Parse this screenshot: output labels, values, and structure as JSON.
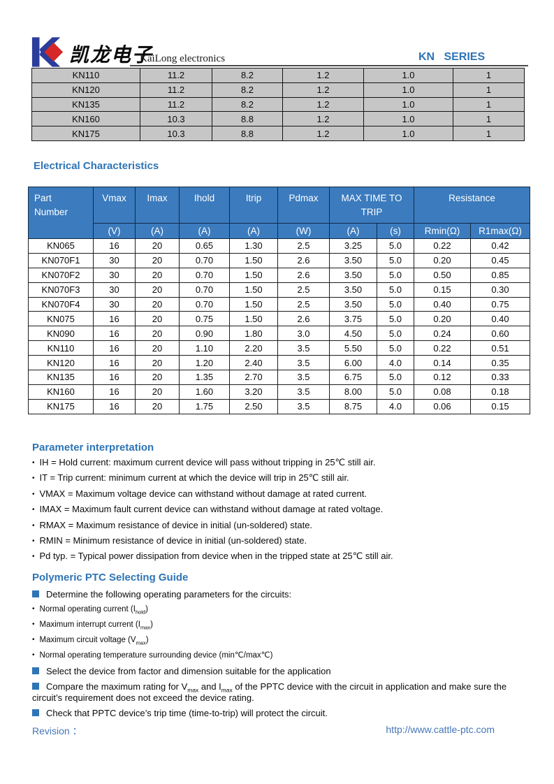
{
  "header": {
    "company_cn": "凯龙电子",
    "company_en": "KaiLong electronics",
    "series": "KN   SERIES"
  },
  "top_table": {
    "rows": [
      [
        "KN110",
        "11.2",
        "8.2",
        "1.2",
        "1.0",
        "1"
      ],
      [
        "KN120",
        "11.2",
        "8.2",
        "1.2",
        "1.0",
        "1"
      ],
      [
        "KN135",
        "11.2",
        "8.2",
        "1.2",
        "1.0",
        "1"
      ],
      [
        "KN160",
        "10.3",
        "8.8",
        "1.2",
        "1.0",
        "1"
      ],
      [
        "KN175",
        "10.3",
        "8.8",
        "1.2",
        "1.0",
        "1"
      ]
    ]
  },
  "electrical": {
    "title": "Electrical Characteristics",
    "head": {
      "part": "Part\nNumber",
      "vmax": "Vmax",
      "imax": "Imax",
      "ihold": "Ihold",
      "itrip": "Itrip",
      "pdmax": "Pdmax",
      "max_time": "MAX TIME TO TRIP",
      "resistance": "Resistance"
    },
    "units": [
      "(V)",
      "(A)",
      "(A)",
      "(A)",
      "(W)",
      "(A)",
      "(s)",
      "Rmin(Ω)",
      "R1max(Ω)"
    ],
    "rows": [
      [
        "KN065",
        "16",
        "20",
        "0.65",
        "1.30",
        "2.5",
        "3.25",
        "5.0",
        "0.22",
        "0.42"
      ],
      [
        "KN070F1",
        "30",
        "20",
        "0.70",
        "1.50",
        "2.6",
        "3.50",
        "5.0",
        "0.20",
        "0.45"
      ],
      [
        "KN070F2",
        "30",
        "20",
        "0.70",
        "1.50",
        "2.6",
        "3.50",
        "5.0",
        "0.50",
        "0.85"
      ],
      [
        "KN070F3",
        "30",
        "20",
        "0.70",
        "1.50",
        "2.5",
        "3.50",
        "5.0",
        "0.15",
        "0.30"
      ],
      [
        "KN070F4",
        "30",
        "20",
        "0.70",
        "1.50",
        "2.5",
        "3.50",
        "5.0",
        "0.40",
        "0.75"
      ],
      [
        "KN075",
        "16",
        "20",
        "0.75",
        "1.50",
        "2.6",
        "3.75",
        "5.0",
        "0.20",
        "0.40"
      ],
      [
        "KN090",
        "16",
        "20",
        "0.90",
        "1.80",
        "3.0",
        "4.50",
        "5.0",
        "0.24",
        "0.60"
      ],
      [
        "KN110",
        "16",
        "20",
        "1.10",
        "2.20",
        "3.5",
        "5.50",
        "5.0",
        "0.22",
        "0.51"
      ],
      [
        "KN120",
        "16",
        "20",
        "1.20",
        "2.40",
        "3.5",
        "6.00",
        "4.0",
        "0.14",
        "0.35"
      ],
      [
        "KN135",
        "16",
        "20",
        "1.35",
        "2.70",
        "3.5",
        "6.75",
        "5.0",
        "0.12",
        "0.33"
      ],
      [
        "KN160",
        "16",
        "20",
        "1.60",
        "3.20",
        "3.5",
        "8.00",
        "5.0",
        "0.08",
        "0.18"
      ],
      [
        "KN175",
        "16",
        "20",
        "1.75",
        "2.50",
        "3.5",
        "8.75",
        "4.0",
        "0.06",
        "0.15"
      ]
    ]
  },
  "parameter_interpretation": {
    "title": "Parameter interpretation",
    "items": [
      "IH = Hold current: maximum current device will pass without tripping in 25℃  still air.",
      "IT = Trip current: minimum current at which the device will trip in 25℃  still air.",
      "VMAX = Maximum voltage device can withstand without damage at rated current.",
      "IMAX = Maximum fault current device can withstand without damage at rated voltage.",
      "RMAX = Maximum resistance of device in initial (un-soldered) state.",
      "RMIN = Minimum resistance of device in initial (un-soldered) state.",
      "Pd typ. = Typical power dissipation from device when in the tripped state at 25℃  still air."
    ]
  },
  "selecting_guide": {
    "title": "Polymeric PTC Selecting Guide",
    "items": [
      {
        "bullet": "square",
        "size": "big",
        "segments": [
          {
            "text": "Determine the following operating parameters for the circuits:"
          }
        ]
      },
      {
        "bullet": "dot",
        "size": "small",
        "segments": [
          {
            "text": "Normal operating current (I"
          },
          {
            "sub": "hold"
          },
          {
            "text": ")"
          }
        ]
      },
      {
        "bullet": "dot",
        "size": "small",
        "segments": [
          {
            "text": "Maximum interrupt current (I"
          },
          {
            "sub": "max"
          },
          {
            "text": ")"
          }
        ]
      },
      {
        "bullet": "dot",
        "size": "small",
        "segments": [
          {
            "text": "Maximum circuit voltage (V"
          },
          {
            "sub": "max"
          },
          {
            "text": ")"
          }
        ]
      },
      {
        "bullet": "dot",
        "size": "small",
        "segments": [
          {
            "text": "Normal operating temperature surrounding device (min℃/max℃)"
          }
        ]
      },
      {
        "bullet": "square",
        "size": "big",
        "segments": [
          {
            "text": "Select the device from factor and dimension suitable for the application"
          }
        ]
      },
      {
        "bullet": "square",
        "size": "big",
        "segments": [
          {
            "text": "Compare the maximum rating for V"
          },
          {
            "sub": "max"
          },
          {
            "text": " and I"
          },
          {
            "sub": "max"
          },
          {
            "text": " of the PPTC device with the circuit in application and make sure the circuit’s requirement does not exceed the device rating."
          }
        ]
      },
      {
        "bullet": "square",
        "size": "big",
        "segments": [
          {
            "text": "Check that PPTC device’s trip time (time-to-trip) will protect the circuit."
          }
        ]
      }
    ]
  },
  "footer": {
    "revision_label": "Revision ：",
    "url": "http://www.cattle-ptc.com"
  },
  "colors": {
    "accent_blue": "#2E74B5",
    "table_header_blue": "#3B7BBE",
    "row_gray": "#C6C6C6",
    "footer_blue": "#4576B8",
    "bullet_square_blue": "#2E75B6",
    "logo_blue": "#2B3D9B",
    "logo_red": "#D62828"
  }
}
